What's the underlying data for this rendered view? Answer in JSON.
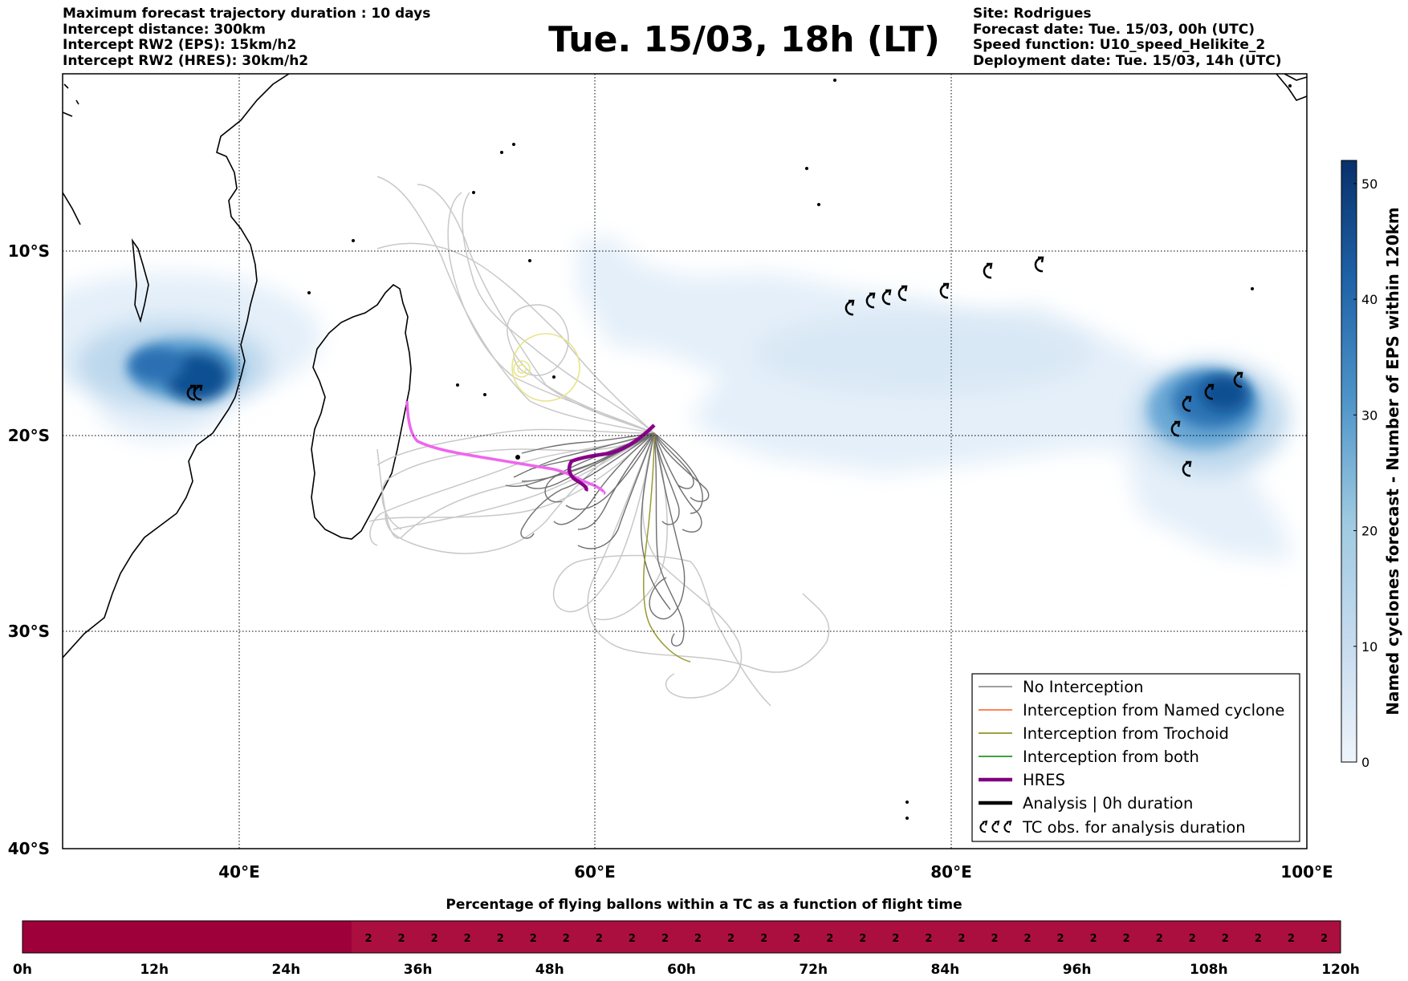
{
  "header": {
    "left": [
      "Maximum forecast trajectory duration : 10 days",
      "Intercept distance: 300km",
      "Intercept RW2 (EPS):  15km/h2",
      "Intercept RW2 (HRES): 30km/h2"
    ],
    "title": "Tue. 15/03, 18h (LT)",
    "right": [
      "Site: Rodrigues",
      "Forecast date: Tue. 15/03, 00h (UTC)",
      "Speed function: U10_speed_Helikite_2",
      "Deployment date: Tue. 15/03, 14h (UTC)"
    ]
  },
  "map": {
    "lon_ticks": [
      "40°E",
      "60°E",
      "80°E",
      "100°E"
    ],
    "lat_ticks": [
      "10°S",
      "20°S",
      "30°S",
      "40°S"
    ],
    "lon_range": [
      30,
      100
    ],
    "lat_range": [
      -40,
      -1
    ]
  },
  "colorbar": {
    "label": "Named cyclones forecast - Number of EPS within 120km",
    "ticks": [
      "0",
      "10",
      "20",
      "30",
      "40",
      "50"
    ],
    "range": [
      0,
      52
    ],
    "colors": [
      "#deebf7",
      "#9ecae1",
      "#4292c6",
      "#2171b5",
      "#08306b"
    ]
  },
  "legend": {
    "items": [
      {
        "label": "No Interception",
        "color": "#808080"
      },
      {
        "label": "Interception from Named cyclone",
        "color": "#ff5a1e"
      },
      {
        "label": "Interception from Trochoid",
        "color": "#808000"
      },
      {
        "label": "Interception from both",
        "color": "#008000"
      },
      {
        "label": "HRES",
        "color": "#800080"
      },
      {
        "label": "Analysis | 0h duration",
        "color": "#000000"
      },
      {
        "label": "TC obs. for analysis duration",
        "color": "#000000"
      }
    ]
  },
  "strip": {
    "title": "Percentage of flying ballons within a TC as a function of flight time",
    "time_labels": [
      "0h",
      "12h",
      "24h",
      "36h",
      "48h",
      "60h",
      "72h",
      "84h",
      "96h",
      "108h",
      "120h"
    ],
    "cell_value": "2",
    "color_zero": "#9e003a",
    "color_low": "#ab0f40"
  }
}
